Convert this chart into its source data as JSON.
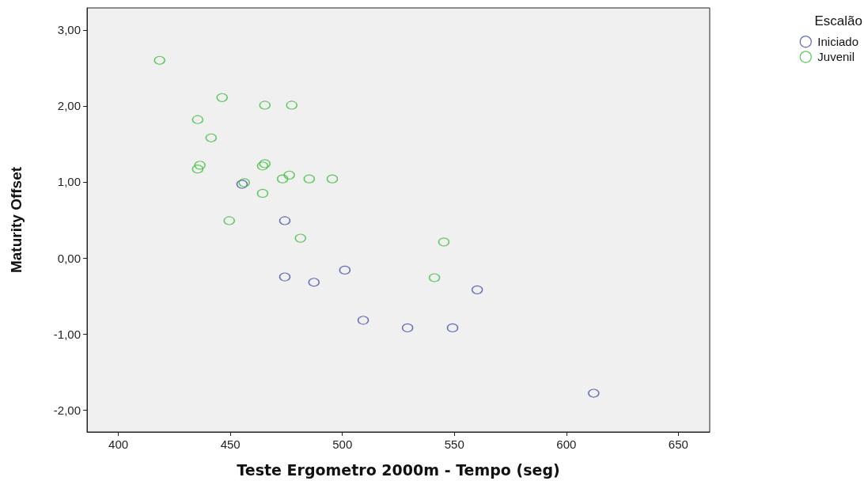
{
  "chart_data": {
    "type": "scatter",
    "xlabel": "Teste Ergometro 2000m - Tempo (seg)",
    "ylabel": "Maturity Offset",
    "legend_title": "Escalão",
    "legend": "top right",
    "marker": "circle",
    "grid": false,
    "xlim": [
      386,
      664
    ],
    "xticks": [
      400,
      450,
      500,
      550,
      600,
      650
    ],
    "ylim": [
      -2.29,
      3.29
    ],
    "yticks": [
      {
        "value": -2,
        "label": "-2,00"
      },
      {
        "value": -1,
        "label": "-1,00"
      },
      {
        "value": 0,
        "label": "0,00"
      },
      {
        "value": 1,
        "label": "1,00"
      },
      {
        "value": 2,
        "label": "2,00"
      },
      {
        "value": 3,
        "label": "3,00"
      }
    ],
    "series": [
      {
        "name": "Iniciado",
        "color": "#3f4ea8",
        "x": [
          455.2,
          474.3,
          474.3,
          487.3,
          501.1,
          560.2,
          509.3,
          529.1,
          549.2,
          612.2
        ],
        "values": [
          0.97,
          0.49,
          -0.25,
          -0.32,
          -0.16,
          -0.42,
          -0.82,
          -0.92,
          -0.92,
          -1.78
        ]
      },
      {
        "name": "Juvenil",
        "color": "#3dbb3d",
        "x": [
          418.4,
          446.3,
          465.4,
          477.4,
          435.4,
          441.4,
          436.4,
          435.4,
          465.4,
          464.4,
          476.3,
          456.2,
          473.3,
          485.2,
          495.5,
          464.4,
          449.5,
          481.3,
          545.3,
          541.1
        ],
        "values": [
          2.6,
          2.11,
          2.01,
          2.01,
          1.82,
          1.58,
          1.22,
          1.17,
          1.24,
          1.21,
          1.09,
          0.99,
          1.04,
          1.04,
          1.04,
          0.85,
          0.49,
          0.26,
          0.21,
          -0.26
        ]
      }
    ]
  }
}
